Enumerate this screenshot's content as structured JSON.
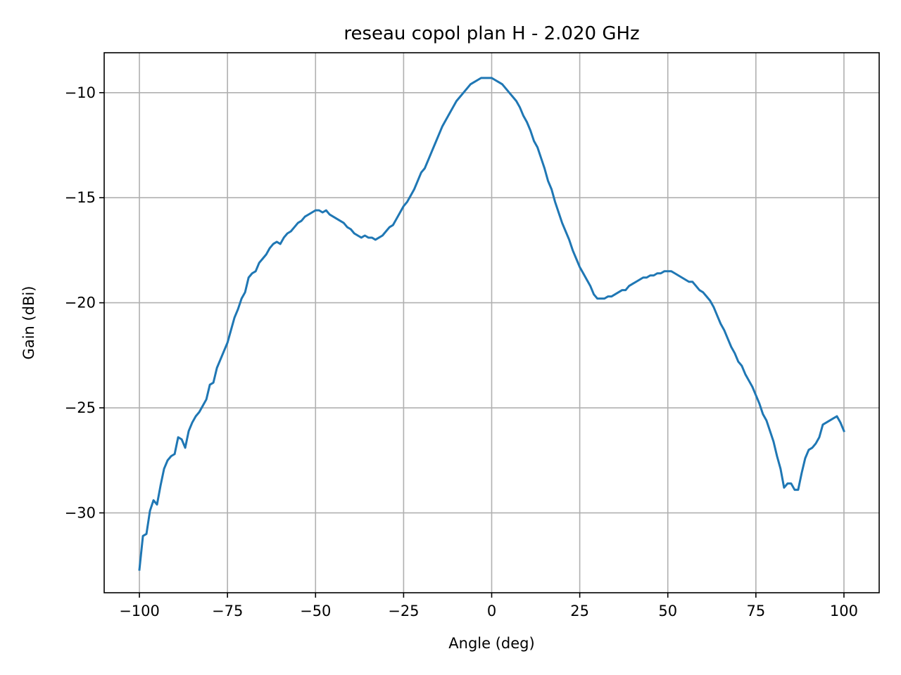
{
  "chart_data": {
    "type": "line",
    "title": "reseau copol plan H - 2.020 GHz",
    "xlabel": "Angle (deg)",
    "ylabel": "Gain (dBi)",
    "xlim": [
      -110,
      110
    ],
    "ylim": [
      -33.8,
      -8.1
    ],
    "xticks": [
      -100,
      -75,
      -50,
      -25,
      0,
      25,
      50,
      75,
      100
    ],
    "xtick_labels": [
      "−100",
      "−75",
      "−50",
      "−25",
      "0",
      "25",
      "50",
      "75",
      "100"
    ],
    "yticks": [
      -10,
      -15,
      -20,
      -25,
      -30
    ],
    "ytick_labels": [
      "−10",
      "−15",
      "−20",
      "−25",
      "−30"
    ],
    "grid": true,
    "series": [
      {
        "color": "#1f77b4",
        "x": [
          -100,
          -99,
          -98,
          -97,
          -96,
          -95,
          -94,
          -93,
          -92,
          -91,
          -90,
          -89,
          -88,
          -87,
          -86,
          -85,
          -84,
          -83,
          -82,
          -81,
          -80,
          -79,
          -78,
          -77,
          -76,
          -75,
          -74,
          -73,
          -72,
          -71,
          -70,
          -69,
          -68,
          -67,
          -66,
          -65,
          -64,
          -63,
          -62,
          -61,
          -60,
          -59,
          -58,
          -57,
          -56,
          -55,
          -54,
          -53,
          -52,
          -51,
          -50,
          -49,
          -48,
          -47,
          -46,
          -45,
          -44,
          -43,
          -42,
          -41,
          -40,
          -39,
          -38,
          -37,
          -36,
          -35,
          -34,
          -33,
          -32,
          -31,
          -30,
          -29,
          -28,
          -27,
          -26,
          -25,
          -24,
          -23,
          -22,
          -21,
          -20,
          -19,
          -18,
          -17,
          -16,
          -15,
          -14,
          -13,
          -12,
          -11,
          -10,
          -9,
          -8,
          -7,
          -6,
          -5,
          -4,
          -3,
          -2,
          -1,
          0,
          1,
          2,
          3,
          4,
          5,
          6,
          7,
          8,
          9,
          10,
          11,
          12,
          13,
          14,
          15,
          16,
          17,
          18,
          19,
          20,
          21,
          22,
          23,
          24,
          25,
          26,
          27,
          28,
          29,
          30,
          31,
          32,
          33,
          34,
          35,
          36,
          37,
          38,
          39,
          40,
          41,
          42,
          43,
          44,
          45,
          46,
          47,
          48,
          49,
          50,
          51,
          52,
          53,
          54,
          55,
          56,
          57,
          58,
          59,
          60,
          61,
          62,
          63,
          64,
          65,
          66,
          67,
          68,
          69,
          70,
          71,
          72,
          73,
          74,
          75,
          76,
          77,
          78,
          79,
          80,
          81,
          82,
          83,
          84,
          85,
          86,
          87,
          88,
          89,
          90,
          91,
          92,
          93,
          94,
          95,
          96,
          97,
          98,
          99,
          100
        ],
        "y": [
          -32.7,
          -31.1,
          -31.0,
          -29.9,
          -29.4,
          -29.6,
          -28.7,
          -27.9,
          -27.5,
          -27.3,
          -27.2,
          -26.4,
          -26.5,
          -26.9,
          -26.1,
          -25.7,
          -25.4,
          -25.2,
          -24.9,
          -24.6,
          -23.9,
          -23.8,
          -23.1,
          -22.7,
          -22.3,
          -21.9,
          -21.3,
          -20.7,
          -20.3,
          -19.8,
          -19.5,
          -18.8,
          -18.6,
          -18.5,
          -18.1,
          -17.9,
          -17.7,
          -17.4,
          -17.2,
          -17.1,
          -17.2,
          -16.9,
          -16.7,
          -16.6,
          -16.4,
          -16.2,
          -16.1,
          -15.9,
          -15.8,
          -15.7,
          -15.6,
          -15.6,
          -15.7,
          -15.6,
          -15.8,
          -15.9,
          -16.0,
          -16.1,
          -16.2,
          -16.4,
          -16.5,
          -16.7,
          -16.8,
          -16.9,
          -16.8,
          -16.9,
          -16.9,
          -17.0,
          -16.9,
          -16.8,
          -16.6,
          -16.4,
          -16.3,
          -16.0,
          -15.7,
          -15.4,
          -15.2,
          -14.9,
          -14.6,
          -14.2,
          -13.8,
          -13.6,
          -13.2,
          -12.8,
          -12.4,
          -12.0,
          -11.6,
          -11.3,
          -11.0,
          -10.7,
          -10.4,
          -10.2,
          -10.0,
          -9.8,
          -9.6,
          -9.5,
          -9.4,
          -9.3,
          -9.3,
          -9.3,
          -9.3,
          -9.4,
          -9.5,
          -9.6,
          -9.8,
          -10.0,
          -10.2,
          -10.4,
          -10.7,
          -11.1,
          -11.4,
          -11.8,
          -12.3,
          -12.6,
          -13.1,
          -13.6,
          -14.2,
          -14.6,
          -15.2,
          -15.7,
          -16.2,
          -16.6,
          -17.0,
          -17.5,
          -17.9,
          -18.3,
          -18.6,
          -18.9,
          -19.2,
          -19.6,
          -19.8,
          -19.8,
          -19.8,
          -19.7,
          -19.7,
          -19.6,
          -19.5,
          -19.4,
          -19.4,
          -19.2,
          -19.1,
          -19.0,
          -18.9,
          -18.8,
          -18.8,
          -18.7,
          -18.7,
          -18.6,
          -18.6,
          -18.5,
          -18.5,
          -18.5,
          -18.6,
          -18.7,
          -18.8,
          -18.9,
          -19.0,
          -19.0,
          -19.2,
          -19.4,
          -19.5,
          -19.7,
          -19.9,
          -20.2,
          -20.6,
          -21.0,
          -21.3,
          -21.7,
          -22.1,
          -22.4,
          -22.8,
          -23.0,
          -23.4,
          -23.7,
          -24.0,
          -24.4,
          -24.8,
          -25.3,
          -25.6,
          -26.1,
          -26.6,
          -27.3,
          -27.9,
          -28.8,
          -28.6,
          -28.6,
          -28.9,
          -28.9,
          -28.1,
          -27.4,
          -27.0,
          -26.9,
          -26.7,
          -26.4,
          -25.8,
          -25.7,
          -25.6,
          -25.5,
          -25.4,
          -25.7,
          -26.1
        ]
      }
    ]
  }
}
